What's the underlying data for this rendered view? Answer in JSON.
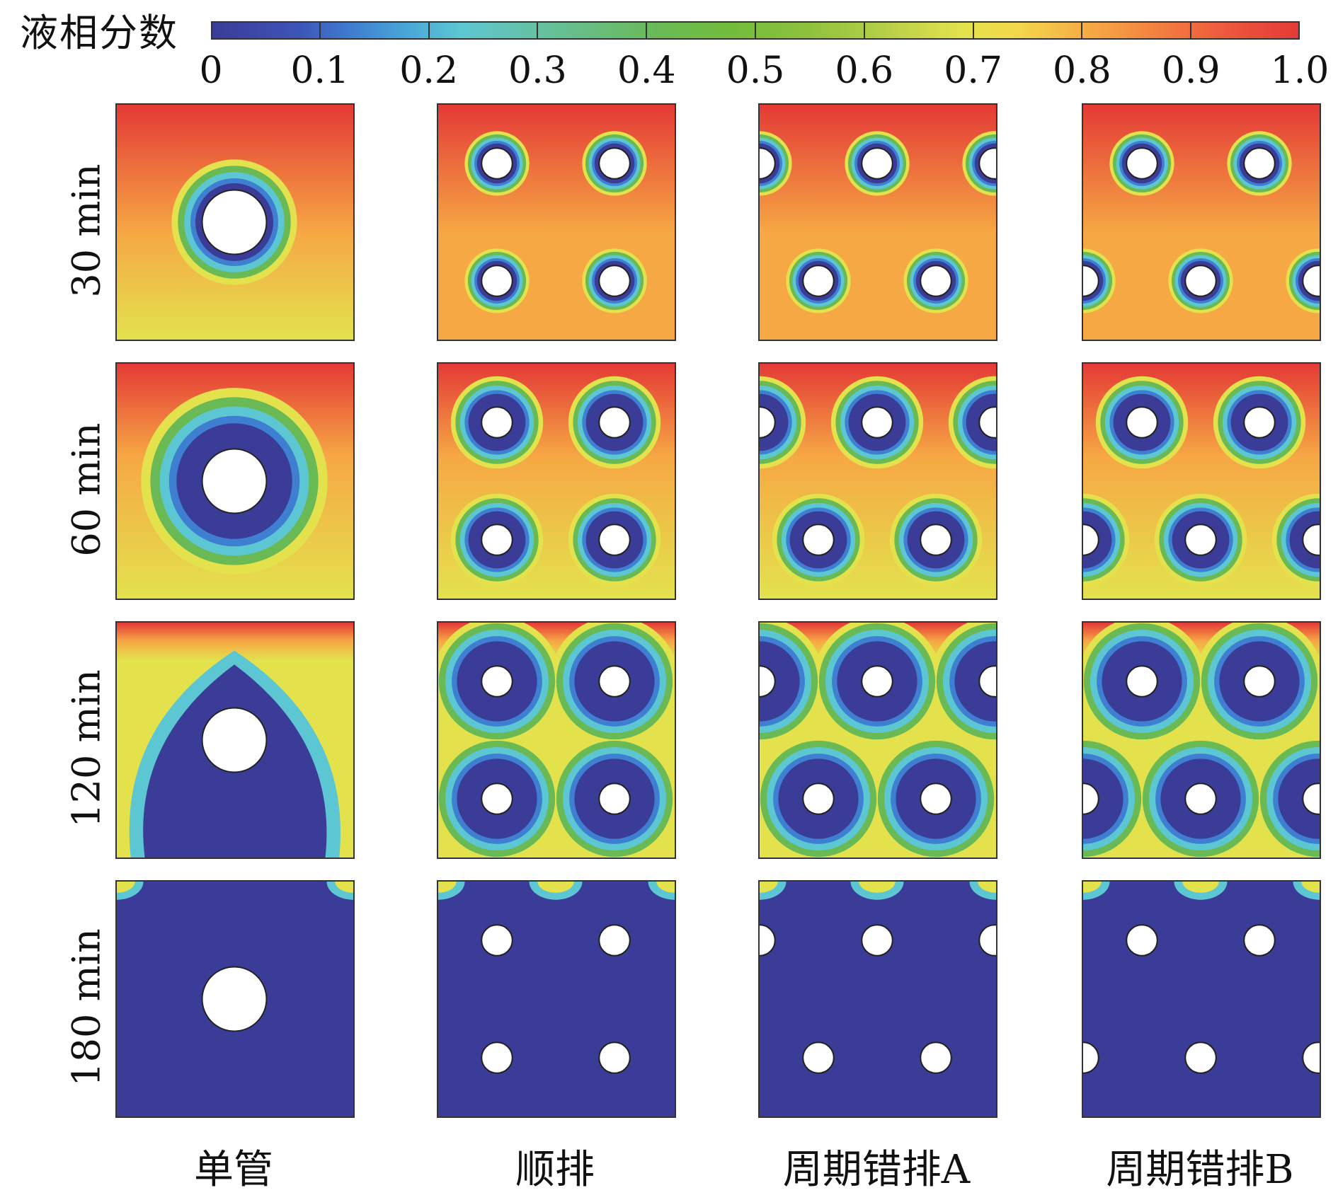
{
  "colorbar": {
    "title": "液相分数",
    "tick_labels": [
      "0",
      "0.1",
      "0.2",
      "0.3",
      "0.4",
      "0.5",
      "0.6",
      "0.7",
      "0.8",
      "0.9",
      "1.0"
    ],
    "colors": [
      "#3a3c98",
      "#3f7fd1",
      "#5cc7d2",
      "#69ba55",
      "#e3e24d",
      "#f6a844",
      "#e43a36"
    ]
  },
  "rows": [
    {
      "label": "30 min"
    },
    {
      "label": "60 min"
    },
    {
      "label": "120 min"
    },
    {
      "label": "180 min"
    }
  ],
  "columns": [
    {
      "label": "单管"
    },
    {
      "label": "顺排"
    },
    {
      "label": "周期错排A"
    },
    {
      "label": "周期错排B"
    }
  ]
}
